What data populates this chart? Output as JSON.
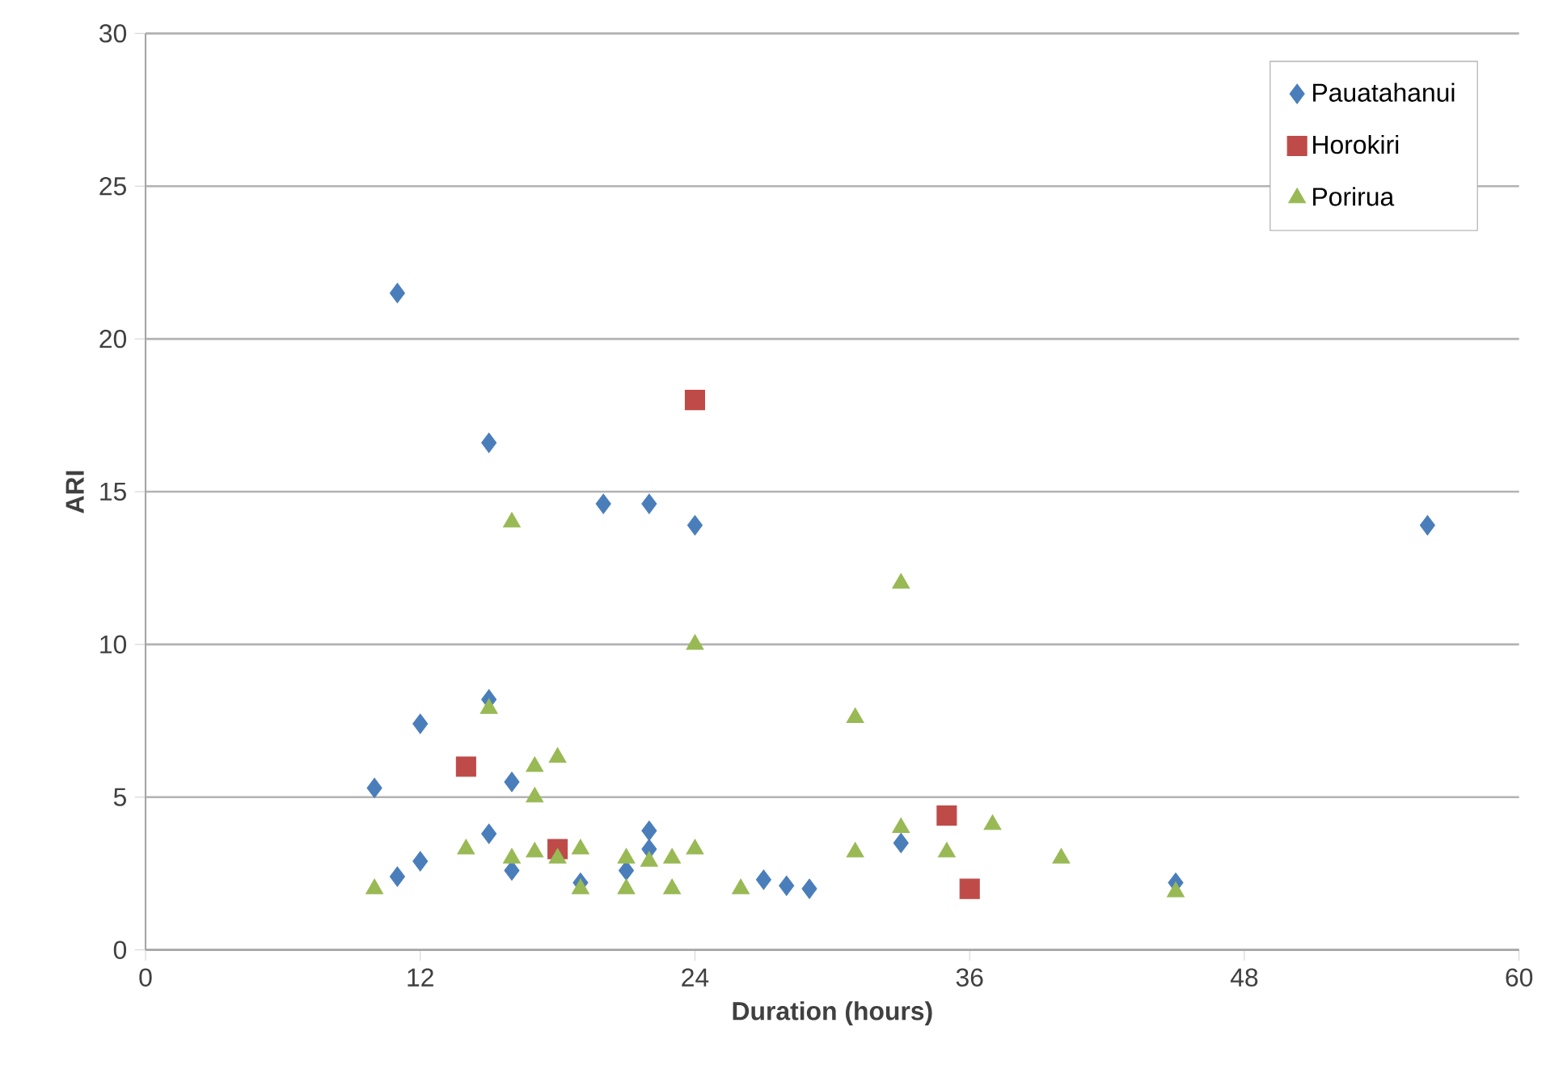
{
  "chart_data": {
    "type": "scatter",
    "xlabel": "Duration (hours)",
    "ylabel": "ARI",
    "xlim": [
      0,
      60
    ],
    "xticks": [
      0,
      12,
      24,
      36,
      48,
      60
    ],
    "ylim": [
      0,
      30
    ],
    "yticks": [
      0,
      5,
      10,
      15,
      20,
      25,
      30
    ],
    "grid": "y",
    "legend": "top right",
    "series": [
      {
        "name": "Pauatahanui",
        "color": "#4a7ebb",
        "marker": "diamond",
        "x": [
          10,
          11,
          11,
          12,
          12,
          15,
          15,
          15,
          16,
          16,
          19,
          20,
          21,
          22,
          22,
          22,
          24,
          27,
          28,
          29,
          33,
          45,
          56
        ],
        "values": [
          5.3,
          21.5,
          2.4,
          7.4,
          2.9,
          16.6,
          8.2,
          3.8,
          5.5,
          2.6,
          2.2,
          14.6,
          2.6,
          14.6,
          3.9,
          3.3,
          13.9,
          2.3,
          2.1,
          2.0,
          3.5,
          2.2,
          13.9
        ]
      },
      {
        "name": "Horokiri",
        "color": "#be4b48",
        "marker": "square",
        "x": [
          14,
          18,
          24,
          35,
          36
        ],
        "values": [
          6.0,
          3.3,
          18.0,
          4.4,
          2.0
        ]
      },
      {
        "name": "Porirua",
        "color": "#98b954",
        "marker": "triangle",
        "x": [
          10,
          14,
          15,
          16,
          16,
          17,
          17,
          17,
          18,
          18,
          19,
          19,
          21,
          21,
          22,
          23,
          23,
          24,
          24,
          26,
          31,
          31,
          33,
          33,
          35,
          37,
          40,
          45
        ],
        "values": [
          2.0,
          3.3,
          7.9,
          14.0,
          3.0,
          6.0,
          5.0,
          3.2,
          6.3,
          3.0,
          3.3,
          2.0,
          3.0,
          2.0,
          2.9,
          3.0,
          2.0,
          10.0,
          3.3,
          2.0,
          7.6,
          3.2,
          12.0,
          4.0,
          3.2,
          4.1,
          3.0,
          1.9
        ]
      }
    ]
  }
}
